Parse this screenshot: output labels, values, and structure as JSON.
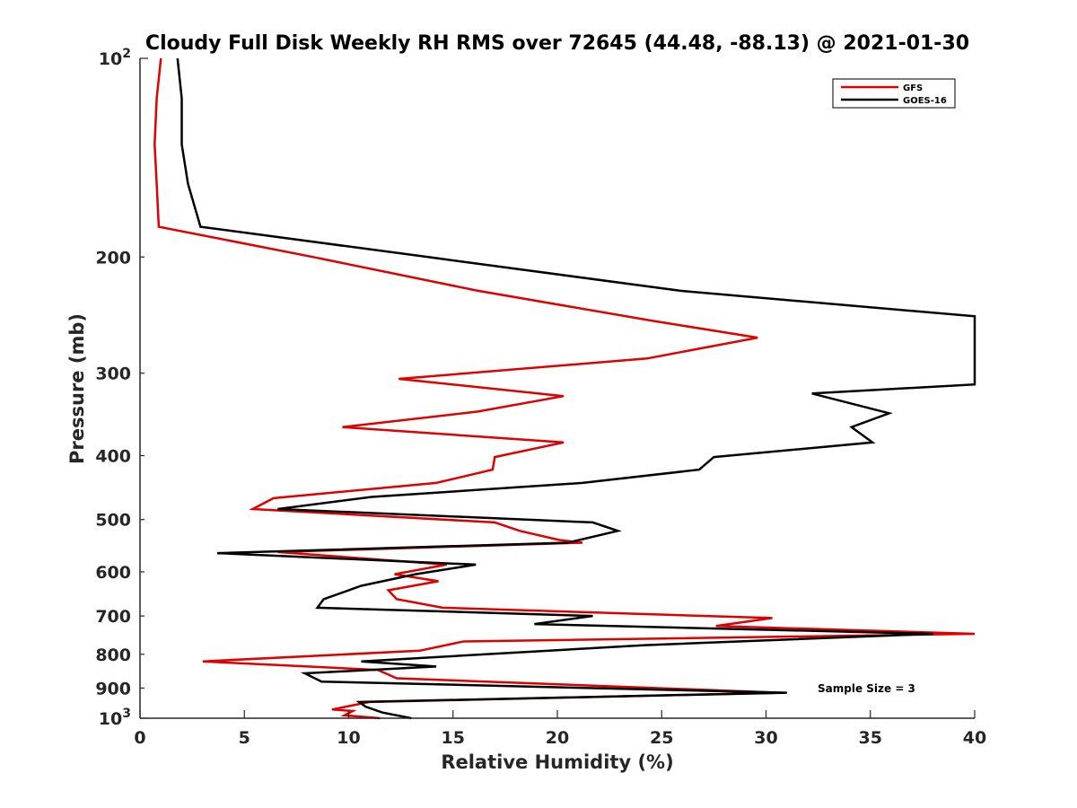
{
  "chart_data": {
    "type": "line",
    "title": "Cloudy Full Disk Weekly RH RMS over 72645 (44.48, -88.13) @ 2021-01-30",
    "xlabel": "Relative Humidity (%)",
    "ylabel": "Pressure (mb)",
    "xlim": [
      0,
      40
    ],
    "ylim": [
      100,
      1000
    ],
    "yscale": "log",
    "y_reversed": true,
    "grid": false,
    "legend_position": "top-right",
    "x_ticks": [
      "0",
      "5",
      "10",
      "15",
      "20",
      "25",
      "30",
      "35",
      "40"
    ],
    "y_ticks": [
      {
        "value": 100,
        "base": "10",
        "exp": "2"
      },
      {
        "value": 200,
        "label": "200"
      },
      {
        "value": 300,
        "label": "300"
      },
      {
        "value": 400,
        "label": "400"
      },
      {
        "value": 500,
        "label": "500"
      },
      {
        "value": 600,
        "label": "600"
      },
      {
        "value": 700,
        "label": "700"
      },
      {
        "value": 800,
        "label": "800"
      },
      {
        "value": 900,
        "label": "900"
      },
      {
        "value": 1000,
        "base": "10",
        "exp": "3"
      }
    ],
    "annotation": "Sample Size = 3",
    "series": [
      {
        "name": "GFS",
        "color": "#e00000",
        "points": [
          [
            1.0,
            100
          ],
          [
            0.8,
            115
          ],
          [
            0.7,
            135
          ],
          [
            0.8,
            155
          ],
          [
            0.9,
            180
          ],
          [
            8.3,
            200
          ],
          [
            16.2,
            225
          ],
          [
            24.6,
            250
          ],
          [
            29.6,
            265
          ],
          [
            24.3,
            285
          ],
          [
            12.4,
            306
          ],
          [
            20.3,
            325
          ],
          [
            16.2,
            343
          ],
          [
            9.7,
            362
          ],
          [
            20.3,
            382
          ],
          [
            17.0,
            402
          ],
          [
            16.9,
            420
          ],
          [
            14.2,
            440
          ],
          [
            6.4,
            464
          ],
          [
            5.4,
            482
          ],
          [
            17.0,
            505
          ],
          [
            18.2,
            520
          ],
          [
            20.1,
            537
          ],
          [
            21.2,
            542
          ],
          [
            6.6,
            560
          ],
          [
            14.7,
            585
          ],
          [
            12.2,
            605
          ],
          [
            14.3,
            620
          ],
          [
            11.9,
            640
          ],
          [
            12.3,
            660
          ],
          [
            14.5,
            680
          ],
          [
            30.3,
            705
          ],
          [
            27.6,
            725
          ],
          [
            40.0,
            745
          ],
          [
            15.5,
            765
          ],
          [
            13.4,
            790
          ],
          [
            3.0,
            820
          ],
          [
            11.4,
            845
          ],
          [
            12.3,
            870
          ],
          [
            30.7,
            915
          ],
          [
            11.0,
            945
          ],
          [
            9.2,
            970
          ],
          [
            10.2,
            975
          ],
          [
            9.8,
            990
          ],
          [
            11.5,
            1000
          ]
        ]
      },
      {
        "name": "GOES-16",
        "color": "#000000",
        "points": [
          [
            1.8,
            100
          ],
          [
            2.0,
            115
          ],
          [
            2.0,
            135
          ],
          [
            2.3,
            155
          ],
          [
            2.9,
            180
          ],
          [
            13.8,
            200
          ],
          [
            25.9,
            225
          ],
          [
            40.0,
            246
          ],
          [
            40.0,
            312
          ],
          [
            32.2,
            322
          ],
          [
            35.9,
            345
          ],
          [
            34.1,
            362
          ],
          [
            35.1,
            382
          ],
          [
            27.5,
            402
          ],
          [
            26.8,
            420
          ],
          [
            21.2,
            440
          ],
          [
            11.1,
            462
          ],
          [
            6.6,
            482
          ],
          [
            21.7,
            505
          ],
          [
            22.9,
            520
          ],
          [
            20.5,
            542
          ],
          [
            3.7,
            562
          ],
          [
            16.1,
            585
          ],
          [
            13.2,
            605
          ],
          [
            10.6,
            630
          ],
          [
            8.8,
            660
          ],
          [
            8.5,
            680
          ],
          [
            21.7,
            700
          ],
          [
            18.9,
            720
          ],
          [
            38.0,
            745
          ],
          [
            24.2,
            775
          ],
          [
            10.6,
            820
          ],
          [
            14.2,
            835
          ],
          [
            7.9,
            855
          ],
          [
            8.7,
            880
          ],
          [
            31.0,
            915
          ],
          [
            10.5,
            945
          ],
          [
            10.8,
            960
          ],
          [
            11.6,
            980
          ],
          [
            13.0,
            1000
          ]
        ]
      }
    ]
  }
}
